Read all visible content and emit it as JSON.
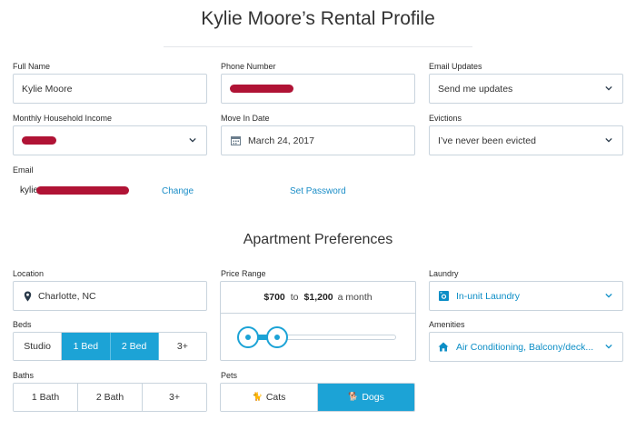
{
  "page": {
    "title": "Kylie Moore’s Rental Profile"
  },
  "profile": {
    "full_name": {
      "label": "Full Name",
      "value": "Kylie Moore"
    },
    "phone": {
      "label": "Phone Number"
    },
    "email_updates": {
      "label": "Email Updates",
      "value": "Send me updates"
    },
    "income": {
      "label": "Monthly Household Income"
    },
    "move_in": {
      "label": "Move In Date",
      "value": "March 24, 2017"
    },
    "evictions": {
      "label": "Evictions",
      "value": "I’ve never been evicted"
    },
    "email": {
      "label": "Email",
      "visible_prefix": "kylie",
      "change_link": "Change",
      "password_link": "Set Password"
    }
  },
  "preferences": {
    "title": "Apartment Preferences",
    "location": {
      "label": "Location",
      "value": "Charlotte, NC"
    },
    "price": {
      "label": "Price Range",
      "min": "$700",
      "to": "to",
      "max": "$1,200",
      "period": "a month",
      "slider_min_fraction": 0.07,
      "slider_max_fraction": 0.25
    },
    "laundry": {
      "label": "Laundry",
      "value": "In-unit Laundry"
    },
    "amenities": {
      "label": "Amenities",
      "value": "Air Conditioning, Balcony/deck..."
    },
    "beds": {
      "label": "Beds",
      "options": [
        "Studio",
        "1 Bed",
        "2 Bed",
        "3+"
      ],
      "selected": [
        "1 Bed",
        "2 Bed"
      ]
    },
    "baths": {
      "label": "Baths",
      "options": [
        "1 Bath",
        "2 Bath",
        "3+"
      ],
      "selected": []
    },
    "pets": {
      "label": "Pets",
      "options": [
        "Cats",
        "Dogs"
      ],
      "selected": [
        "Dogs"
      ]
    }
  },
  "colors": {
    "accent": "#1ca3d6",
    "link": "#1a8dc7",
    "border": "#c9d4dd",
    "redaction": "#b01335"
  },
  "icons": {
    "select": "chevron-down-icon",
    "date": "calendar-icon",
    "location": "map-pin-icon",
    "laundry": "washer-icon",
    "amenities": "home-icon",
    "cats": "cat-icon",
    "dogs": "dog-icon"
  }
}
